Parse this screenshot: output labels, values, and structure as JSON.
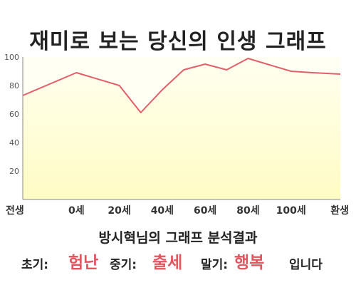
{
  "title": "재미로 보는 당신의 인생 그래프",
  "subtitle": "방시혁님의 그래프 분석결과",
  "result": {
    "early_label": "초기:",
    "early_value": "험난",
    "mid_label": "중기:",
    "mid_value": "출세",
    "late_label": "말기:",
    "late_value": "행복",
    "ending": "입니다"
  },
  "colors": {
    "line": "#e0606a",
    "fill": "#fffcc4",
    "fill_top": "#fffff0",
    "accent_text": "#e05560"
  },
  "chart_data": {
    "type": "area",
    "title": "재미로 보는 당신의 인생 그래프",
    "x_tick_labels": [
      "전생",
      "0세",
      "20세",
      "40세",
      "60세",
      "80세",
      "100세",
      "환생"
    ],
    "y_tick_labels": [
      "20",
      "40",
      "60",
      "80",
      "100"
    ],
    "ylim": [
      0,
      100
    ],
    "grid": false,
    "series": [
      {
        "x": [
          -25,
          0,
          20,
          30,
          40,
          50,
          60,
          70,
          80,
          100,
          110,
          123
        ],
        "y": [
          73,
          89,
          80,
          61,
          77,
          91,
          95,
          91,
          99,
          90,
          89,
          88
        ]
      }
    ]
  }
}
